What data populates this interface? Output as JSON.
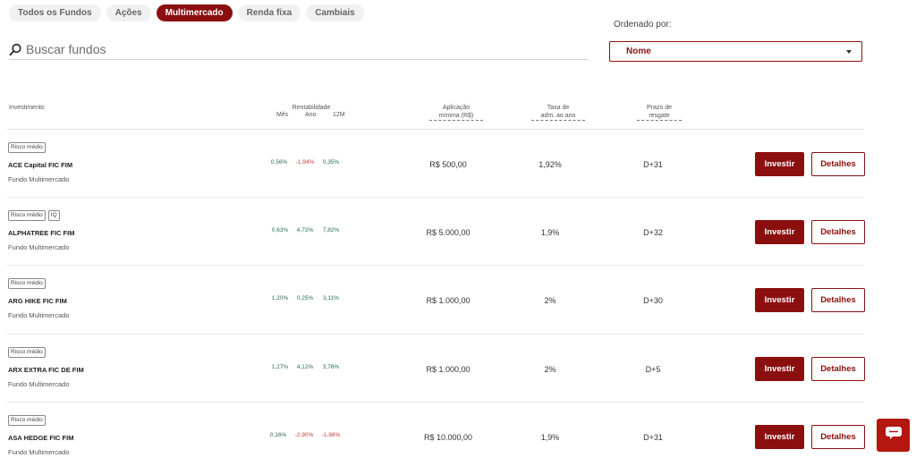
{
  "tabs": [
    "Todos os Fundos",
    "Ações",
    "Multimercado",
    "Renda fixa",
    "Cambiais"
  ],
  "active_tab_index": 2,
  "search": {
    "placeholder": "Buscar fundos"
  },
  "sort": {
    "label": "Ordenado por:",
    "value": "Nome"
  },
  "columns": {
    "investment": "Investimento",
    "profitability": "Rentabilidade",
    "month": "Mês",
    "year": "Ano",
    "twelve_months": "12M",
    "min_application_1": "Aplicação",
    "min_application_2": "mínima (R$)",
    "fee_1": "Taxa de",
    "fee_2": "adm. ao ano",
    "redemption_1": "Prazo de",
    "redemption_2": "resgate"
  },
  "buttons": {
    "invest": "Investir",
    "details": "Detalhes"
  },
  "funds": [
    {
      "badges": [
        "Risco médio"
      ],
      "name": "ACE Capital FIC FIM",
      "type": "Fundo Multimercado",
      "month": "0,56%",
      "year": "-1,94%",
      "twelve": "0,35%",
      "min_application": "R$ 500,00",
      "fee": "1,92%",
      "redemption": "D+31"
    },
    {
      "badges": [
        "Risco médio",
        "IQ"
      ],
      "name": "ALPHATREE FIC FIM",
      "type": "Fundo Multimercado",
      "month": "0,63%",
      "year": "4,72%",
      "twelve": "7,82%",
      "min_application": "R$ 5.000,00",
      "fee": "1,9%",
      "redemption": "D+32"
    },
    {
      "badges": [
        "Risco médio"
      ],
      "name": "ARG HIKE FIC FIM",
      "type": "Fundo Multimercado",
      "month": "1,20%",
      "year": "0,25%",
      "twelve": "3,11%",
      "min_application": "R$ 1.000,00",
      "fee": "2%",
      "redemption": "D+30"
    },
    {
      "badges": [
        "Risco médio"
      ],
      "name": "ARX EXTRA FIC DE FIM",
      "type": "Fundo Multimercado",
      "month": "1,27%",
      "year": "4,12%",
      "twelve": "3,76%",
      "min_application": "R$ 1.000,00",
      "fee": "2%",
      "redemption": "D+5"
    },
    {
      "badges": [
        "Risco médio"
      ],
      "name": "ASA HEDGE FIC FIM",
      "type": "Fundo Multimercado",
      "month": "0,16%",
      "year": "-2,90%",
      "twelve": "-1,98%",
      "min_application": "R$ 10.000,00",
      "fee": "1,9%",
      "redemption": "D+31"
    }
  ],
  "colors": {
    "accent": "#8b0f0f",
    "positive": "#2a7a4a",
    "negative": "#c43a3a",
    "chat": "#b3170f"
  },
  "icons": {
    "search": "search-icon",
    "caret": "chevron-down-icon",
    "chat": "chat-icon"
  }
}
